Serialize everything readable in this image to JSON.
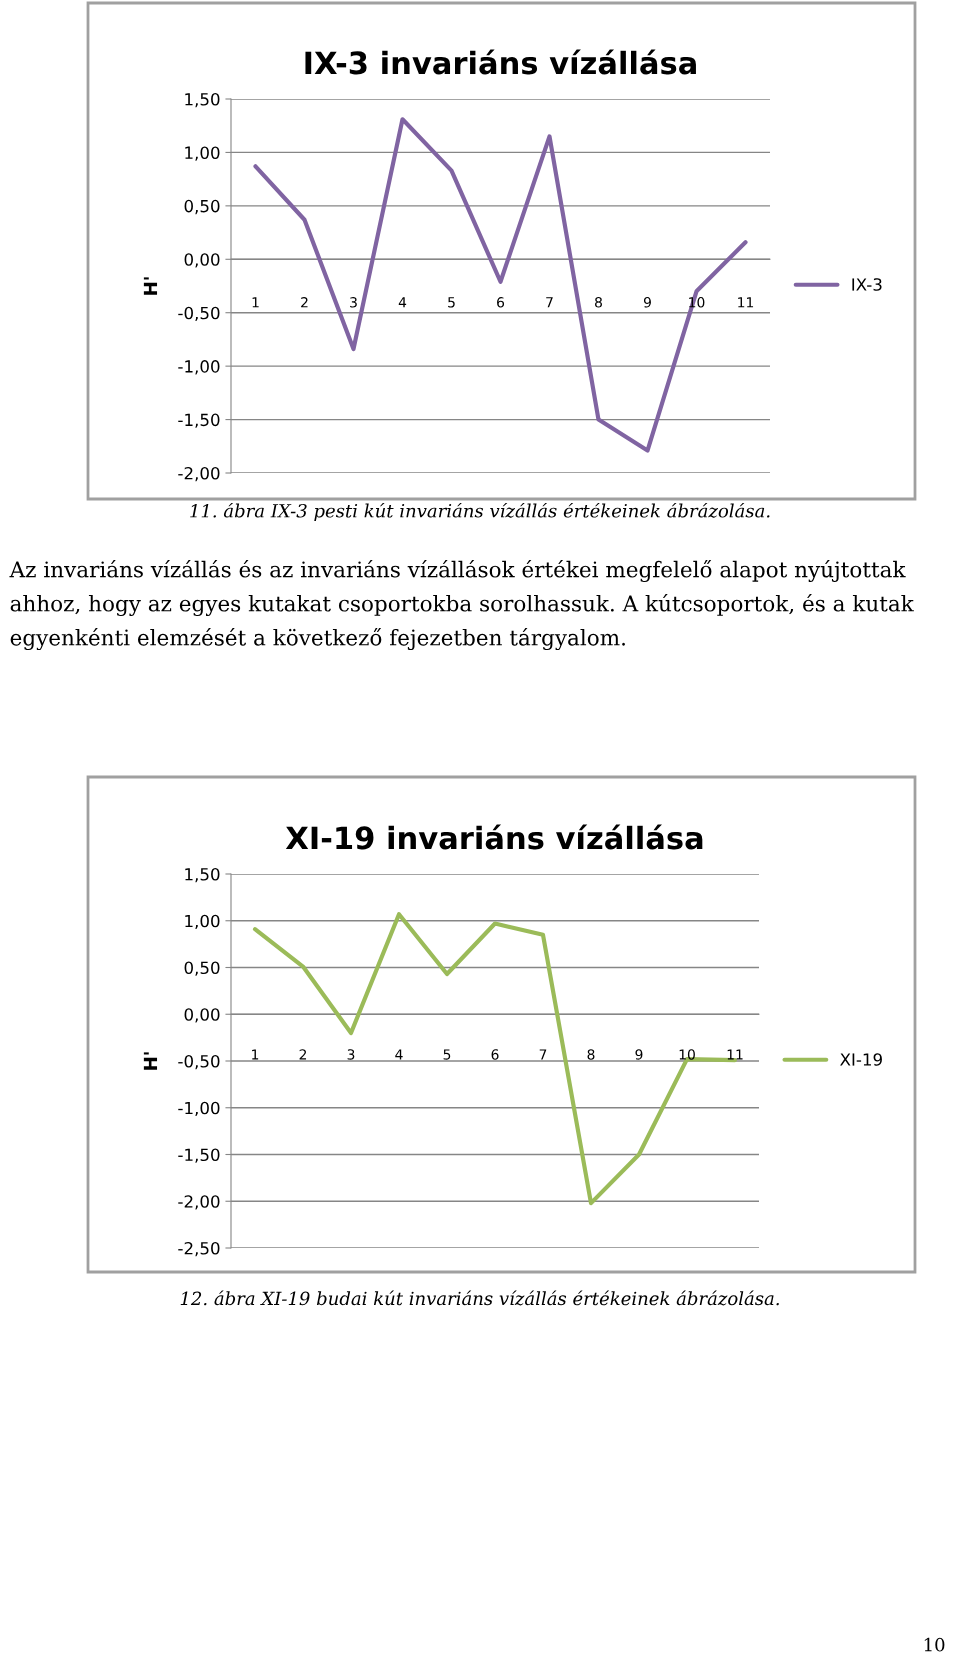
{
  "chart_data": [
    {
      "type": "line",
      "title": "IX-3 invariáns vízállása",
      "ylabel": "H'",
      "categories": [
        "1",
        "2",
        "3",
        "4",
        "5",
        "6",
        "7",
        "8",
        "9",
        "10",
        "11"
      ],
      "series": [
        {
          "name": "IX-3",
          "color": "#8064a2",
          "values": [
            0.87,
            0.37,
            -0.84,
            1.31,
            0.83,
            -0.21,
            1.15,
            -1.5,
            -1.79,
            -0.3,
            0.16
          ]
        }
      ],
      "ylim": [
        -2.0,
        1.5
      ],
      "yticks": [
        {
          "value": 1.5,
          "label": "1,50"
        },
        {
          "value": 1.0,
          "label": "1,00"
        },
        {
          "value": 0.5,
          "label": "0,50"
        },
        {
          "value": 0.0,
          "label": "0,00"
        },
        {
          "value": -0.5,
          "label": "-0,50"
        },
        {
          "value": -1.0,
          "label": "-1,00"
        },
        {
          "value": -1.5,
          "label": "-1,50"
        },
        {
          "value": -2.0,
          "label": "-2,00"
        }
      ],
      "grid": "y",
      "legend": "right",
      "marker": "none",
      "line_style": "solid",
      "annotations": [
        "11. ábra IX-3 pesti kút invariáns vízállás értékeinek ábrázolása.",
        "Az invariáns vízállás és az invariáns vízállások értékei megfelelő alapot nyújtottak ahhoz, hogy az egyes kutakat csoportokba sorolhassuk. A kútcsoportok, és a kutak egyenkénti elemzését a következő fejezetben tárgyalom."
      ]
    },
    {
      "type": "line",
      "title": "XI-19 invariáns vízállása",
      "ylabel": "H'",
      "categories": [
        "1",
        "2",
        "3",
        "4",
        "5",
        "6",
        "7",
        "8",
        "9",
        "10",
        "11"
      ],
      "series": [
        {
          "name": "XI-19",
          "color": "#9bbb59",
          "values": [
            0.91,
            0.51,
            -0.2,
            1.07,
            0.43,
            0.97,
            0.85,
            -2.02,
            -1.5,
            -0.48,
            -0.49
          ]
        }
      ],
      "ylim": [
        -2.5,
        1.5
      ],
      "yticks": [
        {
          "value": 1.5,
          "label": "1,50"
        },
        {
          "value": 1.0,
          "label": "1,00"
        },
        {
          "value": 0.5,
          "label": "0,50"
        },
        {
          "value": 0.0,
          "label": "0,00"
        },
        {
          "value": -0.5,
          "label": "-0,50"
        },
        {
          "value": -1.0,
          "label": "-1,00"
        },
        {
          "value": -1.5,
          "label": "-1,50"
        },
        {
          "value": -2.0,
          "label": "-2,00"
        },
        {
          "value": -2.5,
          "label": "-2,50"
        }
      ],
      "grid": "y",
      "legend": "right",
      "marker": "none",
      "line_style": "solid",
      "annotations": [
        "12. ábra XI-19 budai kút invariáns vízállás értékeinek ábrázolása.",
        "10"
      ]
    }
  ]
}
